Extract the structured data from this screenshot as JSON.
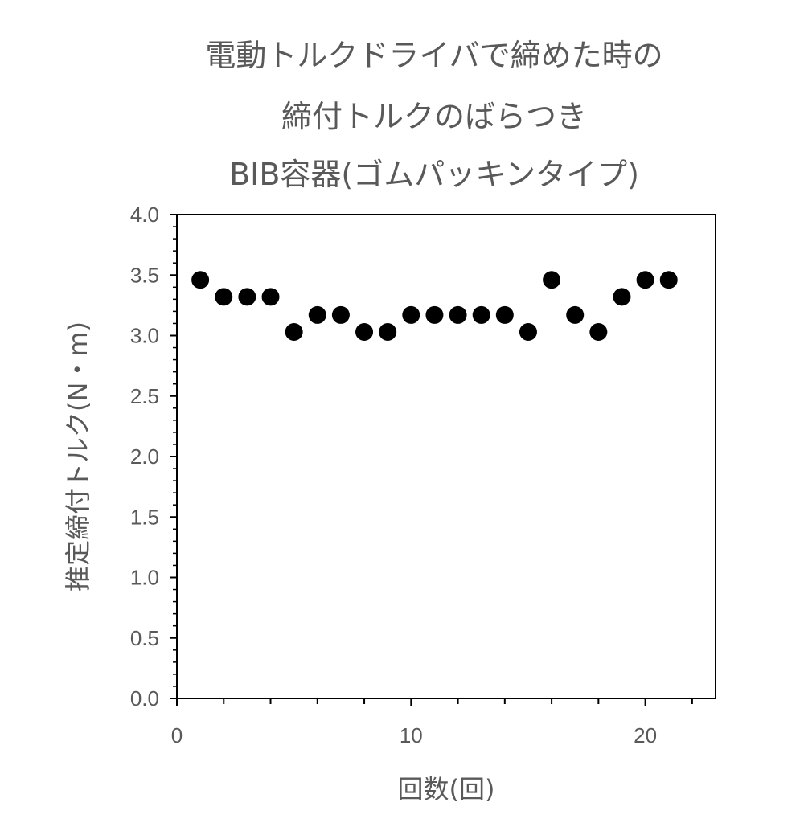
{
  "chart_data": {
    "type": "scatter",
    "title": [
      "電動トルクドライバで締めた時の",
      "締付トルクのばらつき",
      "BIB容器(ゴムパッキンタイプ)"
    ],
    "xlabel": "回数(回)",
    "ylabel": "推定締付トルク(N・m)",
    "xlim": [
      0,
      23
    ],
    "ylim": [
      0,
      4
    ],
    "x_ticks": [
      "0",
      "10",
      "20"
    ],
    "y_ticks": [
      "0.0",
      "0.5",
      "1.0",
      "1.5",
      "2.0",
      "2.5",
      "3.0",
      "3.5",
      "4.0"
    ],
    "grid": false,
    "legend": "none",
    "marker_color": "#000000",
    "series": [
      {
        "x": [
          1,
          2,
          3,
          4,
          5,
          6,
          7,
          8,
          9,
          10,
          11,
          12,
          13,
          14,
          15,
          16,
          17,
          18,
          19,
          20,
          21
        ],
        "y": [
          3.46,
          3.32,
          3.32,
          3.32,
          3.03,
          3.17,
          3.17,
          3.03,
          3.03,
          3.17,
          3.17,
          3.17,
          3.17,
          3.17,
          3.03,
          3.46,
          3.17,
          3.03,
          3.32,
          3.46,
          3.46
        ]
      }
    ]
  }
}
